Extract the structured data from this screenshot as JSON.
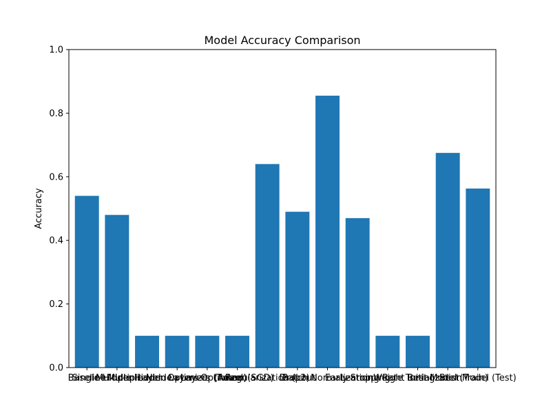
{
  "chart_data": {
    "type": "bar",
    "title": "Model Accuracy Comparison",
    "xlabel": "",
    "ylabel": "Accuracy",
    "ylim": [
      0,
      1.0
    ],
    "yticks": [
      "0.0",
      "0.2",
      "0.4",
      "0.6",
      "0.8",
      "1.0"
    ],
    "categories": [
      "Baseline",
      "Single Hidden Layer",
      "Multiple Hidden Layers",
      "Multiple Hidden Layers (Tuned)",
      "Optimizer (Adam)",
      "Optimizer (SGD)",
      "Regularization (L2)",
      "Dropout",
      "Batch Normalization",
      "Early Stopping",
      "Learning Rate Tuning",
      "Weight Initialization",
      "Best Model (Train)",
      "Best Model (Test)"
    ],
    "values": [
      0.54,
      0.48,
      0.1,
      0.1,
      0.1,
      0.1,
      0.64,
      0.49,
      0.855,
      0.47,
      0.1,
      0.1,
      0.675,
      0.563
    ],
    "bar_color": "#1f77b4",
    "grid": false
  }
}
